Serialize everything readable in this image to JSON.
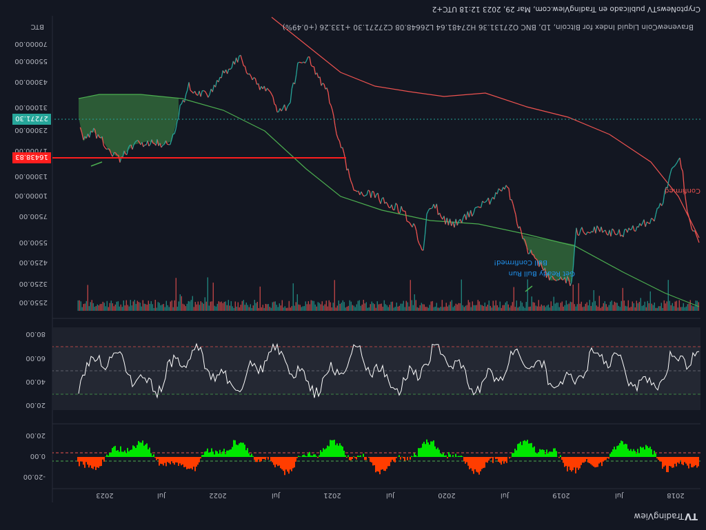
{
  "header": {
    "brand": "TradingView",
    "brand_mark": "TV"
  },
  "caption": {
    "published": "CryptoNewsTV publicado en TradingView.com, Mar 29, 2023 12:18 UTC+2",
    "legend": "BravenewCoin Liquid Index for Bitcoin, 1D, BNC  O27131.36  H27481.64  L26648.08  C27271.30  +133.26 (+0.49%)",
    "symbol": "BTC"
  },
  "time_axis": [
    "2018",
    "Jul",
    "2019",
    "Jul",
    "2020",
    "Jul",
    "2021",
    "Jul",
    "2022",
    "Jul",
    "2023"
  ],
  "colors": {
    "background": "#131722",
    "panel": "#1e222d",
    "up": "#26a69a",
    "down": "#ef5350",
    "green_fill": "#4caf50",
    "red_fill": "#ff3d00",
    "lime": "#00e600",
    "last_price": "#26a69a",
    "level_line": "#ff1e1e"
  },
  "chart_data": [
    {
      "type": "area",
      "name": "oscillator",
      "yticks": [
        "-20.00",
        "0.00",
        "20.00"
      ],
      "levels": [
        -5,
        5
      ]
    },
    {
      "type": "line",
      "name": "rsi",
      "yticks": [
        "20.00",
        "40.00",
        "60.00",
        "80.00"
      ],
      "bands": [
        30,
        70
      ]
    },
    {
      "type": "line",
      "name": "price",
      "log_scale": true,
      "yticks": [
        "2550.00",
        "3250.00",
        "4250.00",
        "5500.00",
        "7500.00",
        "10000.00",
        "13000.00",
        "17000.00",
        "23000.00",
        "31000.00",
        "43000.00",
        "55000.00",
        "70000.00"
      ],
      "last_price": "27271.30",
      "level_price": "16438.83",
      "annotations": [
        "Get Ready Bull Run",
        "Bull Confirmed!",
        "Confirmed"
      ]
    }
  ]
}
